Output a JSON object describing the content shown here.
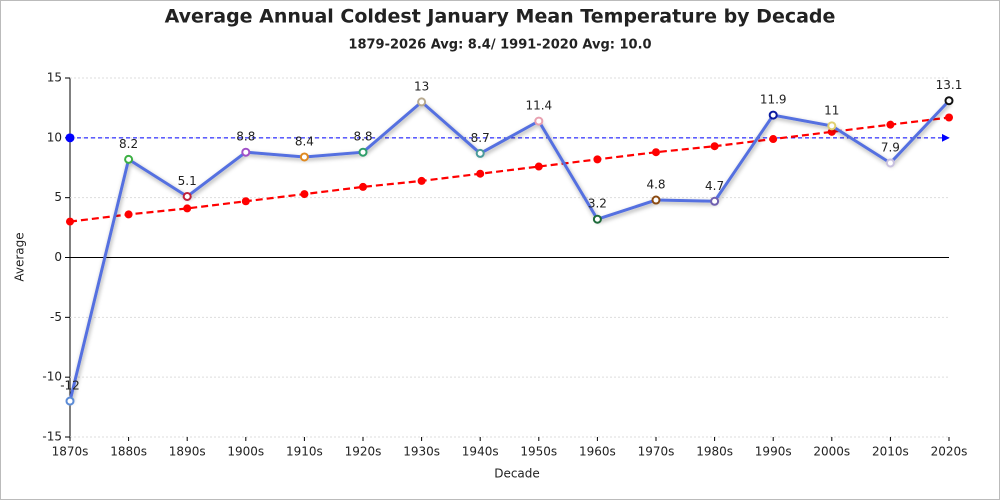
{
  "chart_data": {
    "type": "line",
    "title": "Average Annual Coldest January Mean Temperature by Decade",
    "subtitle": "1879-2026 Avg: 8.4/ 1991-2020 Avg: 10.0",
    "x_label": "Decade",
    "y_label": "Average",
    "categories": [
      "1870s",
      "1880s",
      "1890s",
      "1900s",
      "1910s",
      "1920s",
      "1930s",
      "1940s",
      "1950s",
      "1960s",
      "1970s",
      "1980s",
      "1990s",
      "2000s",
      "2010s",
      "2020s"
    ],
    "series": [
      {
        "color": "#5470e0",
        "values": [
          -12,
          8.2,
          5.1,
          8.8,
          8.4,
          8.8,
          13,
          8.7,
          11.4,
          3.2,
          4.8,
          4.7,
          11.9,
          11,
          7.9,
          13.1
        ],
        "marker_colors": [
          "#5b8bd6",
          "#3cb043",
          "#c0203a",
          "#a050c8",
          "#e08a20",
          "#2e9e6a",
          "#b8aa90",
          "#4a9a9a",
          "#e8a0b0",
          "#1e6b3a",
          "#8b4a10",
          "#7060b0",
          "#0a1aa0",
          "#e0d070",
          "#c8c0e0",
          "#111111"
        ],
        "data_labels": true
      },
      {
        "color": "#ff0000",
        "style": "dashed",
        "values": [
          3.0,
          3.6,
          4.1,
          4.7,
          5.3,
          5.9,
          6.4,
          7.0,
          7.6,
          8.2,
          8.8,
          9.3,
          9.9,
          10.5,
          11.1,
          11.7
        ]
      }
    ],
    "reference_line": {
      "value": 10,
      "color": "#0000ff"
    },
    "ylim": [
      -15,
      15
    ],
    "yticks": [
      -15,
      -10,
      -5,
      0,
      5,
      10,
      15
    ],
    "grid": true
  }
}
